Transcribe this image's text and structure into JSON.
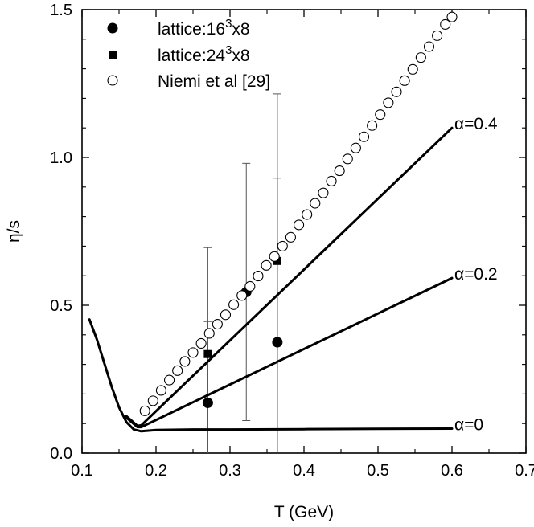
{
  "chart_data": {
    "type": "scatter",
    "title": "",
    "xlabel": "T (GeV)",
    "ylabel": "η/s",
    "xlim": [
      0.1,
      0.7
    ],
    "ylim": [
      0.0,
      1.5
    ],
    "x_ticks": [
      "0.1",
      "0.2",
      "0.3",
      "0.4",
      "0.5",
      "0.6",
      "0.7"
    ],
    "y_ticks": [
      "0.0",
      "0.5",
      "1.0",
      "1.5"
    ],
    "grid": false,
    "legend_position": "top-left",
    "legend": [
      {
        "marker": "filled-circle",
        "label_main": "lattice:16",
        "label_sup": "3",
        "label_tail": "x8"
      },
      {
        "marker": "filled-square",
        "label_main": "lattice:24",
        "label_sup": "3",
        "label_tail": "x8"
      },
      {
        "marker": "open-circle",
        "label_main": "Niemi et al [29]",
        "label_sup": "",
        "label_tail": ""
      }
    ],
    "series": [
      {
        "name": "lattice:16^3x8",
        "marker": "filled-circle",
        "points": [
          {
            "x": 0.27,
            "y": 0.17,
            "ylo": 0.0,
            "yhi": 0.445
          },
          {
            "x": 0.322,
            "y": 0.545,
            "ylo": 0.11,
            "yhi": 0.98
          },
          {
            "x": 0.364,
            "y": 0.375,
            "ylo": 0.0,
            "yhi": 0.93
          }
        ]
      },
      {
        "name": "lattice:24^3x8",
        "marker": "filled-square",
        "points": [
          {
            "x": 0.27,
            "y": 0.335,
            "ylo": 0.0,
            "yhi": 0.695
          },
          {
            "x": 0.364,
            "y": 0.65,
            "ylo": 0.0,
            "yhi": 1.215
          }
        ]
      },
      {
        "name": "Niemi et al [29]",
        "marker": "open-circle",
        "points": [
          {
            "x": 0.185,
            "y": 0.143
          },
          {
            "x": 0.196,
            "y": 0.177
          },
          {
            "x": 0.207,
            "y": 0.212
          },
          {
            "x": 0.218,
            "y": 0.247
          },
          {
            "x": 0.229,
            "y": 0.279
          },
          {
            "x": 0.239,
            "y": 0.31
          },
          {
            "x": 0.25,
            "y": 0.34
          },
          {
            "x": 0.261,
            "y": 0.371
          },
          {
            "x": 0.272,
            "y": 0.405
          },
          {
            "x": 0.283,
            "y": 0.436
          },
          {
            "x": 0.294,
            "y": 0.468
          },
          {
            "x": 0.305,
            "y": 0.502
          },
          {
            "x": 0.316,
            "y": 0.533
          },
          {
            "x": 0.327,
            "y": 0.564
          },
          {
            "x": 0.338,
            "y": 0.599
          },
          {
            "x": 0.349,
            "y": 0.635
          },
          {
            "x": 0.36,
            "y": 0.665
          },
          {
            "x": 0.371,
            "y": 0.7
          },
          {
            "x": 0.382,
            "y": 0.73
          },
          {
            "x": 0.393,
            "y": 0.772
          },
          {
            "x": 0.404,
            "y": 0.807
          },
          {
            "x": 0.415,
            "y": 0.845
          },
          {
            "x": 0.426,
            "y": 0.88
          },
          {
            "x": 0.437,
            "y": 0.92
          },
          {
            "x": 0.448,
            "y": 0.955
          },
          {
            "x": 0.459,
            "y": 0.995
          },
          {
            "x": 0.47,
            "y": 1.032
          },
          {
            "x": 0.481,
            "y": 1.07
          },
          {
            "x": 0.492,
            "y": 1.108
          },
          {
            "x": 0.503,
            "y": 1.145
          },
          {
            "x": 0.514,
            "y": 1.185
          },
          {
            "x": 0.525,
            "y": 1.222
          },
          {
            "x": 0.536,
            "y": 1.26
          },
          {
            "x": 0.547,
            "y": 1.298
          },
          {
            "x": 0.558,
            "y": 1.338
          },
          {
            "x": 0.569,
            "y": 1.375
          },
          {
            "x": 0.58,
            "y": 1.412
          },
          {
            "x": 0.591,
            "y": 1.45
          },
          {
            "x": 0.6,
            "y": 1.475
          }
        ]
      }
    ],
    "curves": [
      {
        "name": "α=0",
        "label": "α=0",
        "points": [
          {
            "x": 0.11,
            "y": 0.452
          },
          {
            "x": 0.12,
            "y": 0.385
          },
          {
            "x": 0.13,
            "y": 0.305
          },
          {
            "x": 0.14,
            "y": 0.225
          },
          {
            "x": 0.15,
            "y": 0.155
          },
          {
            "x": 0.16,
            "y": 0.105
          },
          {
            "x": 0.17,
            "y": 0.08
          },
          {
            "x": 0.18,
            "y": 0.074
          },
          {
            "x": 0.19,
            "y": 0.076
          },
          {
            "x": 0.2,
            "y": 0.078
          },
          {
            "x": 0.25,
            "y": 0.08
          },
          {
            "x": 0.3,
            "y": 0.08
          },
          {
            "x": 0.4,
            "y": 0.081
          },
          {
            "x": 0.5,
            "y": 0.082
          },
          {
            "x": 0.6,
            "y": 0.083
          }
        ]
      },
      {
        "name": "α=0.2",
        "label": "α=0.2",
        "points": [
          {
            "x": 0.16,
            "y": 0.12
          },
          {
            "x": 0.175,
            "y": 0.088
          },
          {
            "x": 0.18,
            "y": 0.088
          },
          {
            "x": 0.6,
            "y": 0.592
          }
        ]
      },
      {
        "name": "α=0.4",
        "label": "α=0.4",
        "points": [
          {
            "x": 0.16,
            "y": 0.125
          },
          {
            "x": 0.175,
            "y": 0.092
          },
          {
            "x": 0.18,
            "y": 0.094
          },
          {
            "x": 0.6,
            "y": 1.1
          }
        ]
      }
    ]
  }
}
